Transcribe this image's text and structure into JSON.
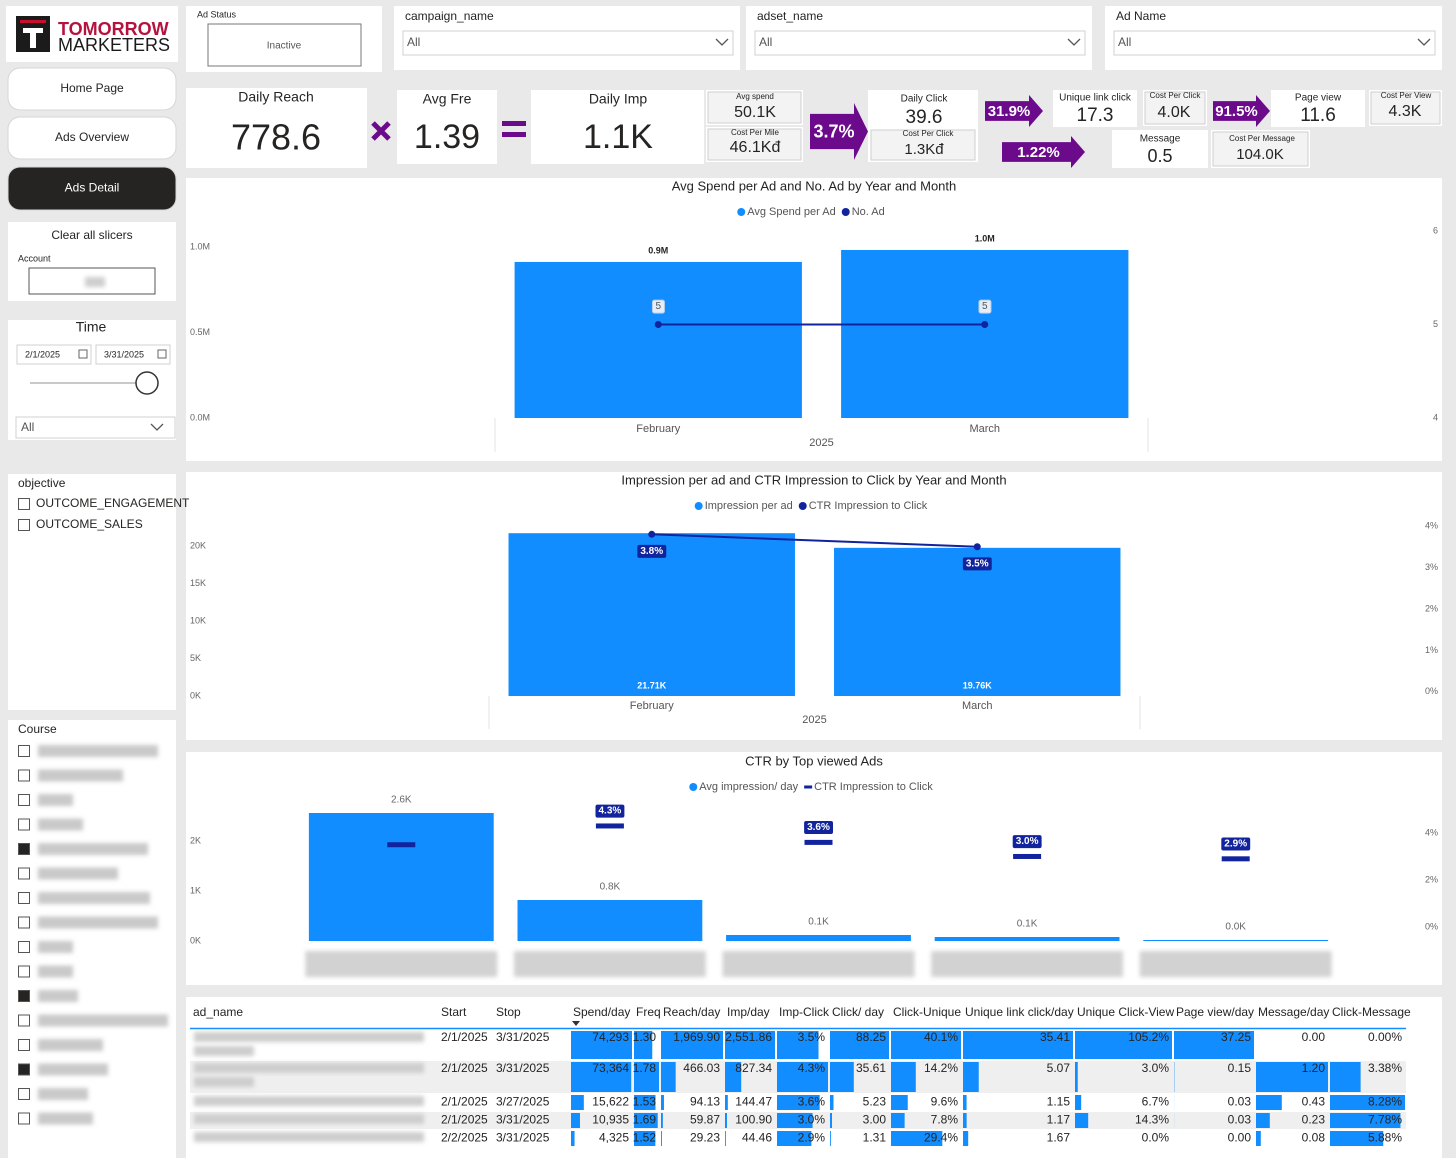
{
  "logo": {
    "line1": "TOMORROW",
    "line2": "MARKETERS"
  },
  "nav": [
    "Home Page",
    "Ads Overview",
    "Ads Detail"
  ],
  "filters": {
    "ad_status": {
      "label": "Ad Status",
      "value": "Inactive"
    },
    "campaign_name": {
      "label": "campaign_name",
      "value": "All"
    },
    "adset_name": {
      "label": "adset_name",
      "value": "All"
    },
    "ad_name": {
      "label": "Ad Name",
      "value": "All"
    }
  },
  "sidebar": {
    "clear": "Clear all slicers",
    "account": "Account",
    "time": {
      "title": "Time",
      "start": "2/1/2025",
      "end": "3/31/2025",
      "dropdown": "All"
    },
    "objective": {
      "title": "objective",
      "options": [
        "OUTCOME_ENGAGEMENT",
        "OUTCOME_SALES"
      ]
    },
    "course": {
      "title": "Course"
    }
  },
  "kpis": {
    "daily_reach": {
      "label": "Daily Reach",
      "value": "778.6"
    },
    "avg_fre": {
      "label": "Avg Fre",
      "value": "1.39"
    },
    "daily_imp": {
      "label": "Daily Imp",
      "value": "1.1K"
    },
    "avg_spend": {
      "label": "Avg spend",
      "value": "50.1K"
    },
    "cost_per_mile": {
      "label": "Cost Per Mile",
      "value": "46.1Kđ"
    },
    "rate_imp_click": "3.7%",
    "daily_click": {
      "label": "Daily Click",
      "value": "39.6"
    },
    "cost_per_click": {
      "label": "Cost Per Click",
      "value": "1.3Kđ"
    },
    "rate_click_unique": "31.9%",
    "rate_click_message": "1.22%",
    "unique_link_click": {
      "label": "Unique link click",
      "value": "17.3"
    },
    "cost_per_unique_click": {
      "label": "Cost Per Click",
      "value": "4.0K"
    },
    "rate_unique_view": "91.5%",
    "page_view": {
      "label": "Page view",
      "value": "11.6"
    },
    "cost_per_view": {
      "label": "Cost Per View",
      "value": "4.3K"
    },
    "message": {
      "label": "Message",
      "value": "0.5"
    },
    "cost_per_message": {
      "label": "Cost Per Message",
      "value": "104.0K"
    }
  },
  "chart_data": [
    {
      "type": "bar",
      "title": "Avg Spend per Ad and No. Ad by Year and Month",
      "categories": [
        "February",
        "March"
      ],
      "x_group": "2025",
      "series": [
        {
          "name": "Avg Spend per Ad",
          "type": "bar",
          "color": "#118dff",
          "values": [
            913000,
            983000
          ],
          "value_labels": [
            "0.9M",
            "1.0M"
          ]
        },
        {
          "name": "No. Ad",
          "type": "line",
          "axis": "y2",
          "color": "#12239e",
          "marker": "circle",
          "line": true,
          "values": [
            5,
            5
          ]
        }
      ],
      "ylim": [
        0,
        1094000
      ],
      "yticks": [
        {
          "value": 0,
          "label": "0.0M"
        },
        {
          "value": 500000,
          "label": "0.5M"
        },
        {
          "value": 1000000,
          "label": "1.0M"
        }
      ],
      "y2lim": [
        4,
        6
      ],
      "y2ticks": [
        4,
        5,
        6
      ],
      "grid": false
    },
    {
      "type": "bar",
      "title": "Impression per ad and CTR Impression to Click by Year and Month",
      "categories": [
        "February",
        "March"
      ],
      "x_group": "2025",
      "series": [
        {
          "name": "Impression per ad",
          "type": "bar",
          "color": "#118dff",
          "values": [
            21710,
            19760
          ],
          "value_labels": [
            "21.71K",
            "19.76K"
          ]
        },
        {
          "name": "CTR Impression to Click",
          "type": "line",
          "axis": "y2",
          "color": "#12239e",
          "marker": "circle",
          "line": true,
          "values": [
            3.8,
            3.5
          ],
          "value_labels": [
            "3.8%",
            "3.5%"
          ]
        }
      ],
      "ylim": [
        0,
        22670
      ],
      "yticks": [
        {
          "value": 0,
          "label": "0K"
        },
        {
          "value": 5000,
          "label": "5K"
        },
        {
          "value": 10000,
          "label": "10K"
        },
        {
          "value": 15000,
          "label": "15K"
        },
        {
          "value": 20000,
          "label": "20K"
        }
      ],
      "y2lim": [
        -0.1,
        4
      ],
      "y2ticks": [
        {
          "value": 0,
          "label": "0%"
        },
        {
          "value": 1,
          "label": "1%"
        },
        {
          "value": 2,
          "label": "2%"
        },
        {
          "value": 3,
          "label": "3%"
        },
        {
          "value": 4,
          "label": "4%"
        }
      ],
      "grid": false
    },
    {
      "type": "bar",
      "title": "CTR by Top viewed Ads",
      "categories": [
        null,
        null,
        null,
        null,
        null
      ],
      "series": [
        {
          "name": "Avg impression/ day",
          "type": "bar",
          "color": "#118dff",
          "values": [
            2560,
            820,
            120,
            80,
            20
          ],
          "value_labels": [
            "2.6K",
            "0.8K",
            "0.1K",
            "0.1K",
            "0.0K"
          ]
        },
        {
          "name": "CTR Impression to Click",
          "type": "line",
          "axis": "y2",
          "color": "#12239e",
          "marker": "dash",
          "line": false,
          "values": [
            3.5,
            4.3,
            3.6,
            3.0,
            2.9
          ],
          "value_labels": [
            null,
            "4.3%",
            "3.6%",
            "3.0%",
            "2.9%"
          ]
        }
      ],
      "ylim": [
        0,
        2700
      ],
      "yticks": [
        {
          "value": 0,
          "label": "0K"
        },
        {
          "value": 1000,
          "label": "1K"
        },
        {
          "value": 2000,
          "label": "2K"
        }
      ],
      "y2lim": [
        -0.6,
        5.15
      ],
      "y2ticks": [
        {
          "value": 0,
          "label": "0%"
        },
        {
          "value": 2,
          "label": "2%"
        },
        {
          "value": 4,
          "label": "4%"
        }
      ],
      "grid": false
    }
  ],
  "table": {
    "columns": [
      "ad_name",
      "Start",
      "Stop",
      "Spend/day",
      "Freq",
      "Reach/day",
      "Imp/day",
      "Imp-Click",
      "Click/ day",
      "Click-Unique",
      "Unique link click/day",
      "Unique Click-View",
      "Page view/day",
      "Message/day",
      "Click-Message"
    ],
    "rows": [
      [
        null,
        "2/1/2025",
        "3/31/2025",
        {
          "value": 74293,
          "label": "74,293"
        },
        {
          "value": 1.3,
          "label": "1.30"
        },
        {
          "value": 1969.9,
          "label": "1,969.90"
        },
        {
          "value": 2551.86,
          "label": "2,551.86"
        },
        {
          "value": 3.5,
          "label": "3.5%"
        },
        88.25,
        {
          "value": 40.1,
          "label": "40.1%"
        },
        35.41,
        {
          "value": 105.2,
          "label": "105.2%"
        },
        37.25,
        {
          "value": 0,
          "label": "0.00"
        },
        {
          "value": 0,
          "label": "0.00%"
        }
      ],
      [
        null,
        "2/1/2025",
        "3/31/2025",
        {
          "value": 73364,
          "label": "73,364"
        },
        1.78,
        466.03,
        827.34,
        {
          "value": 4.3,
          "label": "4.3%"
        },
        35.61,
        {
          "value": 14.2,
          "label": "14.2%"
        },
        5.07,
        {
          "value": 3,
          "label": "3.0%"
        },
        0.15,
        {
          "value": 1.2,
          "label": "1.20"
        },
        {
          "value": 3.38,
          "label": "3.38%"
        }
      ],
      [
        null,
        "2/1/2025",
        "3/27/2025",
        {
          "value": 15622,
          "label": "15,622"
        },
        1.53,
        94.13,
        144.47,
        {
          "value": 3.6,
          "label": "3.6%"
        },
        5.23,
        {
          "value": 9.6,
          "label": "9.6%"
        },
        1.15,
        {
          "value": 6.7,
          "label": "6.7%"
        },
        0.03,
        0.43,
        {
          "value": 8.28,
          "label": "8.28%"
        }
      ],
      [
        null,
        "2/1/2025",
        "3/31/2025",
        {
          "value": 10935,
          "label": "10,935"
        },
        1.69,
        59.87,
        {
          "value": 100.9,
          "label": "100.90"
        },
        {
          "value": 3,
          "label": "3.0%"
        },
        {
          "value": 3,
          "label": "3.00"
        },
        {
          "value": 7.8,
          "label": "7.8%"
        },
        1.17,
        {
          "value": 14.3,
          "label": "14.3%"
        },
        0.03,
        0.23,
        {
          "value": 7.78,
          "label": "7.78%"
        }
      ],
      [
        null,
        "2/2/2025",
        "3/31/2025",
        {
          "value": 4325,
          "label": "4,325"
        },
        1.52,
        29.23,
        44.46,
        {
          "value": 2.9,
          "label": "2.9%"
        },
        1.31,
        {
          "value": 29.4,
          "label": "29.4%"
        },
        1.67,
        {
          "value": 0,
          "label": "0.0%"
        },
        {
          "value": 0,
          "label": "0.00"
        },
        0.08,
        {
          "value": 5.88,
          "label": "5.88%"
        }
      ]
    ]
  }
}
